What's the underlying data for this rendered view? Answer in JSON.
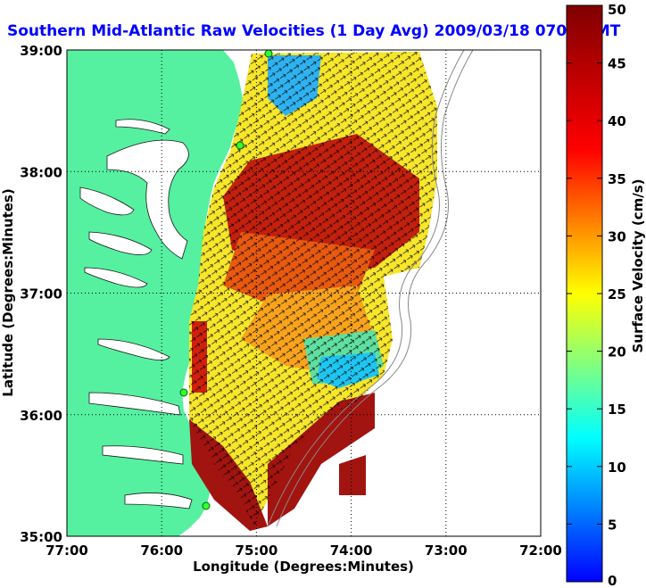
{
  "title": "Southern Mid-Atlantic Raw Velocities (1 Day Avg) 2009/03/18 0700 GMT",
  "xlabel": "Longitude (Degrees:Minutes)",
  "ylabel": "Latitude (Degrees:Minutes)",
  "colorbar_label": "Surface Velocity (cm/s)",
  "x_ticks": [
    "77:00",
    "76:00",
    "75:00",
    "74:00",
    "73:00",
    "72:00"
  ],
  "y_ticks": [
    "39:00",
    "38:00",
    "37:00",
    "36:00",
    "35:00"
  ],
  "colorbar_ticks": [
    "50",
    "45",
    "40",
    "35",
    "30",
    "25",
    "20",
    "15",
    "10",
    "5",
    "0"
  ],
  "colors": {
    "land": "#55f0a0",
    "water": "#ffffff",
    "title": "#0000ff",
    "grid": "#000000"
  },
  "colormap": "jet",
  "velocity_range_cm_s": [
    0,
    50
  ],
  "lon_range_deg": [
    -77,
    -72
  ],
  "lat_range_deg": [
    35,
    39
  ]
}
